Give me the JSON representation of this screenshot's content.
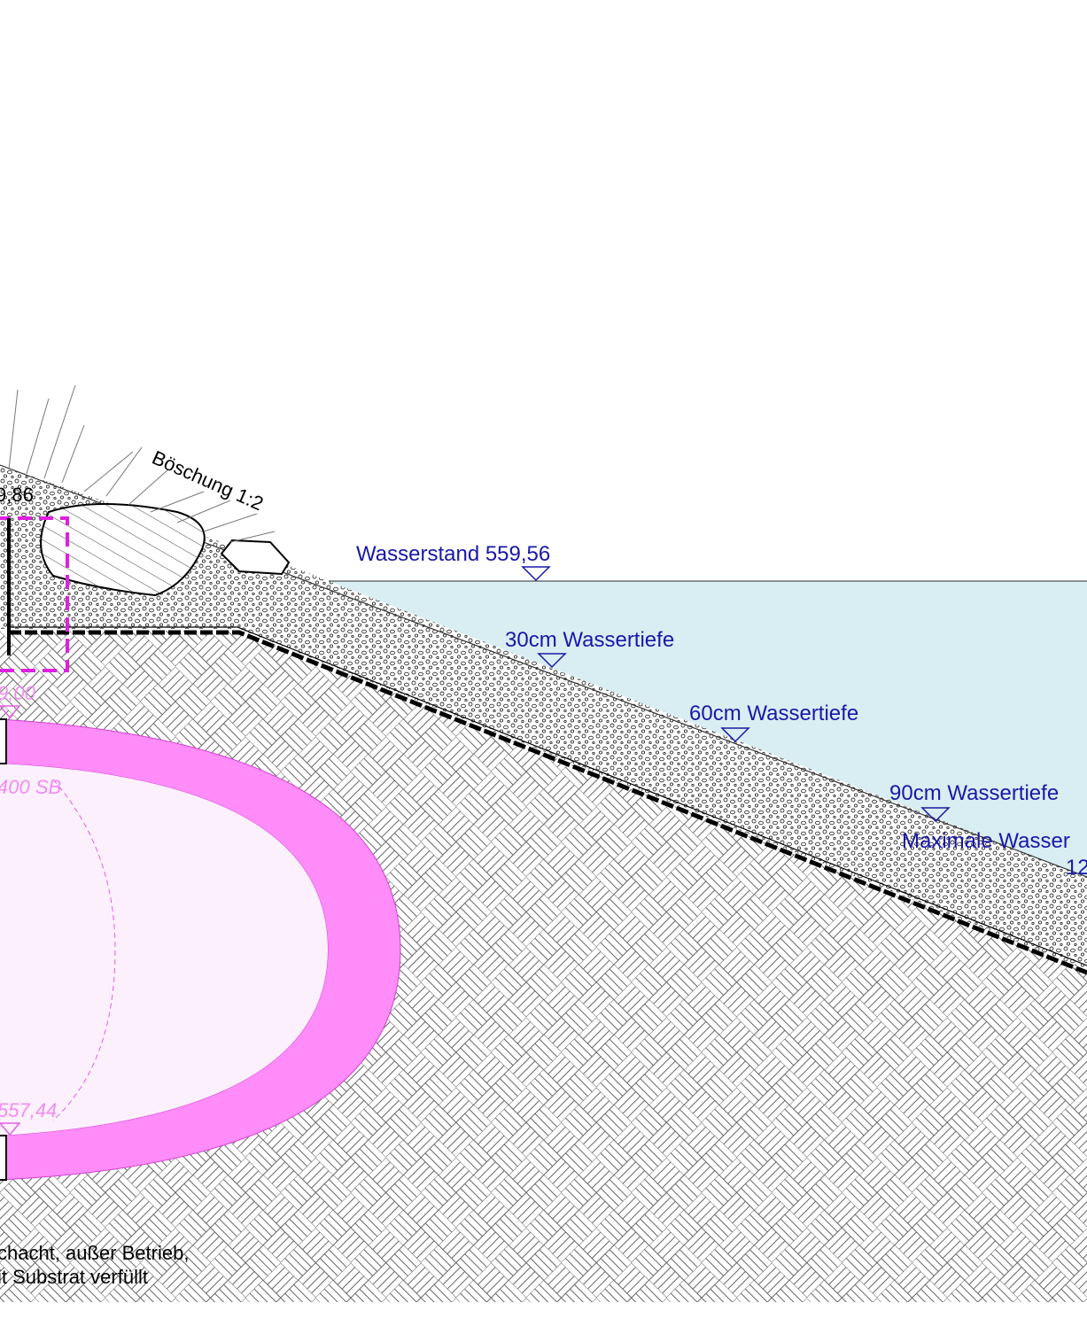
{
  "annotations": {
    "slope": "Böschung 1:2",
    "top_level": "9,86",
    "water_level": "Wasserstand 559,56",
    "depth_30": "30cm Wassertiefe",
    "depth_60": "60cm Wassertiefe",
    "depth_90": "90cm Wassertiefe",
    "max_depth": "Maximale Wasser",
    "max_depth_value": "12",
    "shaft_level": "9,00",
    "pipe_type": "400 SB",
    "pipe_invert": "557,44",
    "note_line1": "chacht, außer Betrieb,",
    "note_line2": "it Substrat verfüllt"
  }
}
